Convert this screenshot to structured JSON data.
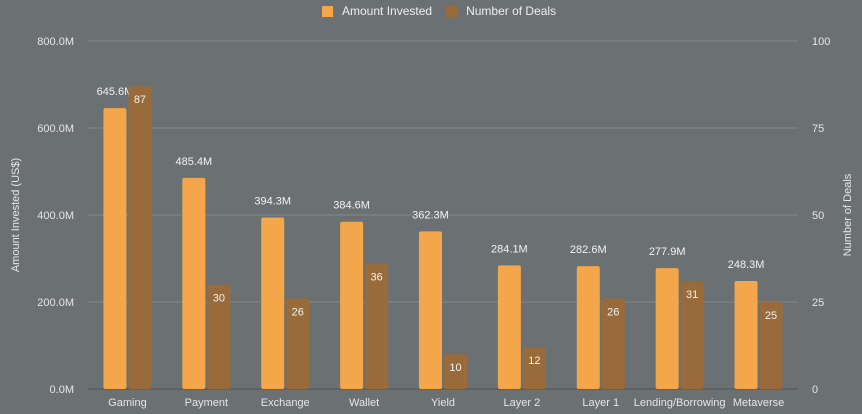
{
  "chart_data": {
    "type": "bar",
    "title": "",
    "categories": [
      "Gaming",
      "Payment",
      "Exchange",
      "Wallet",
      "Yield",
      "Layer 2",
      "Layer 1",
      "Lending/Borrowing",
      "Metaverse"
    ],
    "series": [
      {
        "name": "Amount Invested",
        "axis": "left",
        "color": "#f4a64a",
        "values": [
          645.6,
          485.4,
          394.3,
          384.6,
          362.3,
          284.1,
          282.6,
          277.9,
          248.3
        ],
        "labels": [
          "645.6M",
          "485.4M",
          "394.3M",
          "384.6M",
          "362.3M",
          "284.1M",
          "282.6M",
          "277.9M",
          "248.3M"
        ]
      },
      {
        "name": "Number of Deals",
        "axis": "right",
        "color": "#996b3a",
        "values": [
          87,
          30,
          26,
          36,
          10,
          12,
          26,
          31,
          25
        ],
        "labels": [
          "87",
          "30",
          "26",
          "36",
          "10",
          "12",
          "26",
          "31",
          "25"
        ]
      }
    ],
    "ylabel": "Amount Invested (US$)",
    "y2label": "Number of Deals",
    "ylim": [
      0,
      800
    ],
    "y2lim": [
      0,
      100
    ],
    "yticks": [
      "0.0M",
      "200.0M",
      "400.0M",
      "600.0M",
      "800.0M"
    ],
    "y2ticks": [
      "0",
      "25",
      "50",
      "75",
      "100"
    ],
    "grid": true,
    "legend_position": "top-center"
  }
}
